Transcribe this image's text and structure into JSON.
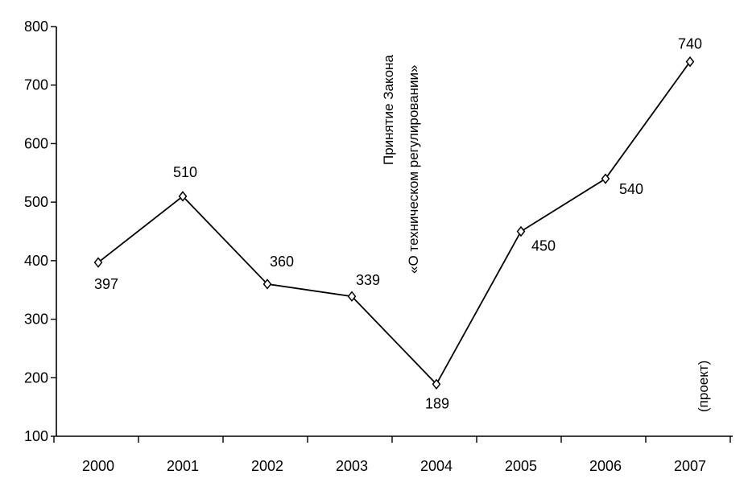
{
  "chart_data": {
    "type": "line",
    "categories": [
      "2000",
      "2001",
      "2002",
      "2003",
      "2004",
      "2005",
      "2006",
      "2007"
    ],
    "values": [
      397,
      510,
      360,
      339,
      189,
      450,
      540,
      740
    ],
    "data_labels": [
      "397",
      "510",
      "360",
      "339",
      "189",
      "450",
      "540",
      "740"
    ],
    "ylim": [
      100,
      800
    ],
    "yticks": [
      100,
      200,
      300,
      400,
      500,
      600,
      700,
      800
    ],
    "ytick_labels": [
      "100",
      "200",
      "300",
      "400",
      "500",
      "600",
      "700",
      "800"
    ],
    "grid": false,
    "marker": "diamond",
    "line_color": "#000000",
    "annotations": {
      "law_line1": "Принятие Закона",
      "law_line2": "«О техническом регулировании»",
      "project": "(проект)"
    }
  }
}
